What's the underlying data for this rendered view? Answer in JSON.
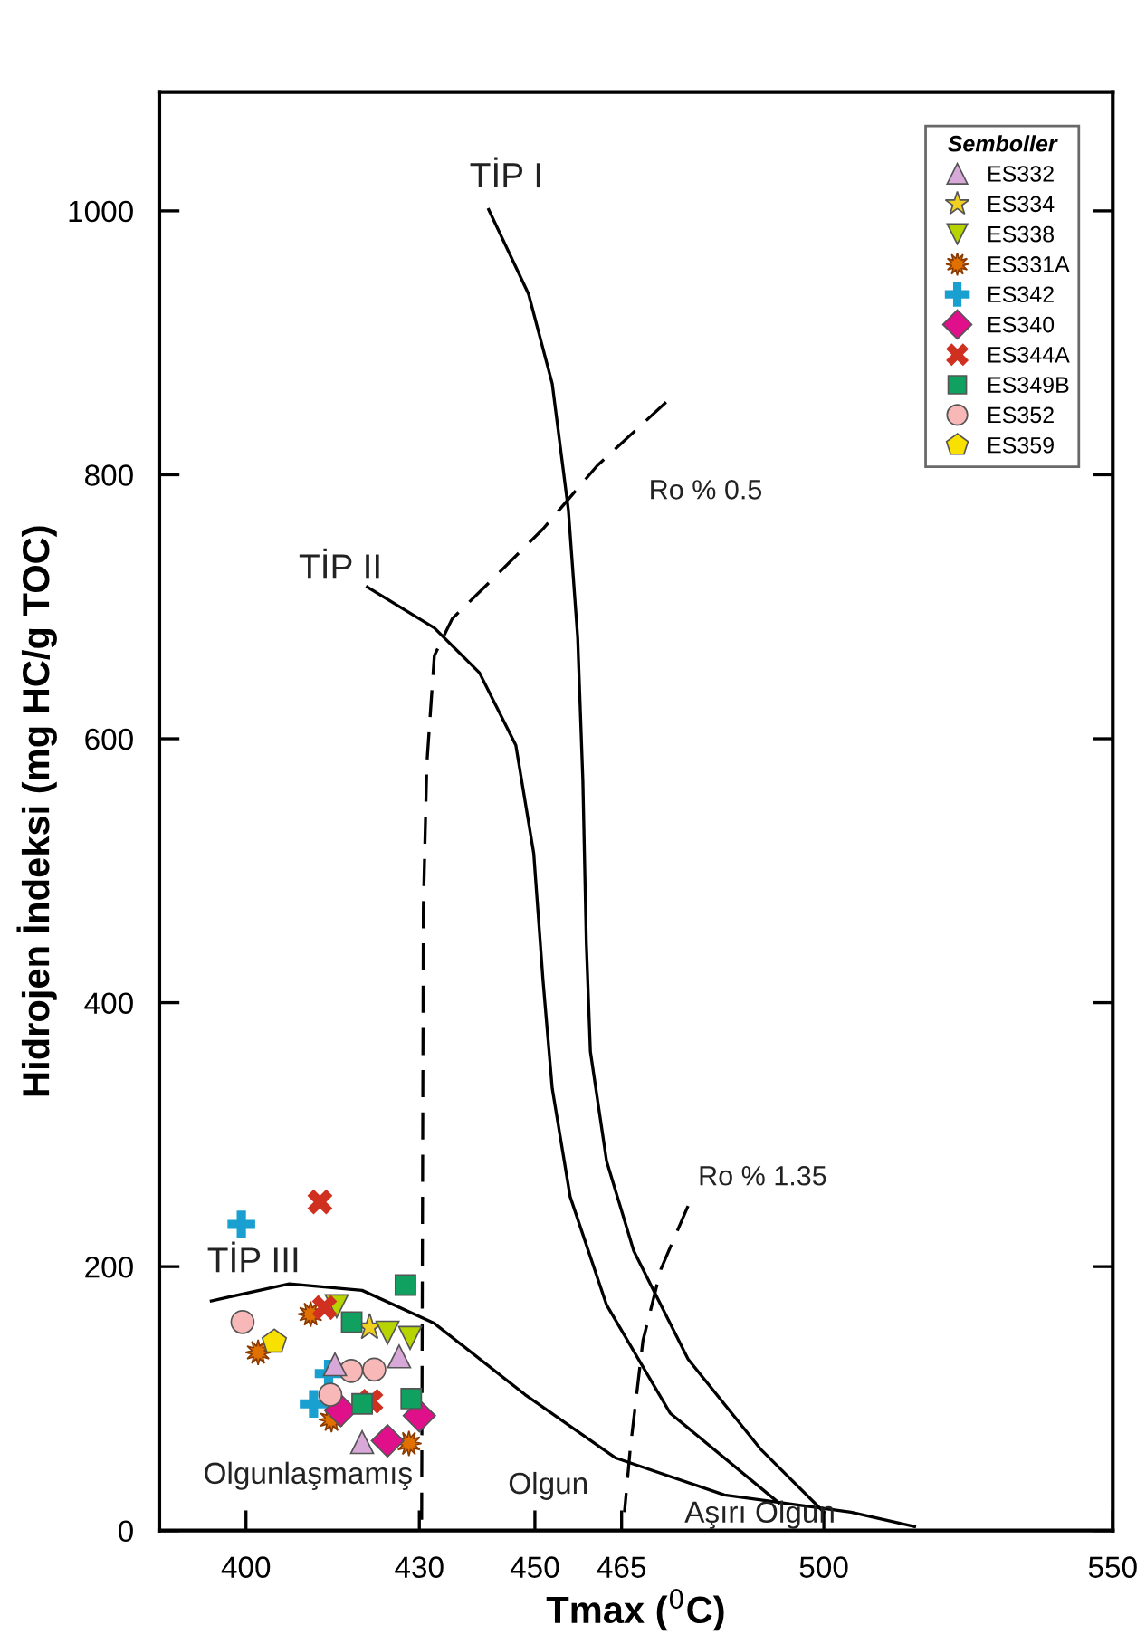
{
  "chart_data": {
    "type": "scatter",
    "xlabel": "Tmax ($^{0}$C)",
    "ylabel": "Hidrojen İndeksi (mg HC/g TOC)",
    "legend_title": "Semboller",
    "legend": "top right",
    "grid": false,
    "xlim": [
      385,
      550
    ],
    "xticks": [
      400,
      430,
      450,
      465,
      500,
      550
    ],
    "ylim": [
      0,
      1090
    ],
    "yticks": [
      0,
      200,
      400,
      600,
      800,
      1000
    ],
    "series": [
      {
        "type": "line",
        "color": "#000000",
        "line_style": "solid",
        "x": [
          442.0,
          448.9,
          453.0,
          455.8,
          457.4,
          458.3,
          458.9,
          459.6,
          462.4,
          467.1,
          476.5,
          489.0,
          500.0
        ],
        "values": [
          1001,
          937,
          869,
          773,
          677,
          568,
          445,
          363,
          280,
          212,
          130,
          62,
          14
        ]
      },
      {
        "type": "line",
        "color": "#000000",
        "line_style": "solid",
        "x": [
          421.0,
          432.6,
          440.4,
          446.7,
          449.8,
          451.4,
          453.0,
          456.1,
          462.4,
          473.4,
          492.2
        ],
        "values": [
          715,
          684,
          650,
          595,
          513,
          417,
          335,
          253,
          171,
          89,
          21
        ]
      },
      {
        "type": "line",
        "color": "#000000",
        "line_style": "solid",
        "x": [
          394.0,
          407.5,
          420.1,
          432.6,
          448.3,
          464.0,
          482.8,
          504.7,
          515.7
        ],
        "values": [
          174,
          187,
          182,
          157,
          103,
          55,
          27,
          14,
          3
        ]
      },
      {
        "type": "line",
        "color": "#000000",
        "line_style": "dashed",
        "x": [
          472.7,
          460.8,
          451.4,
          442.0,
          435.7,
          432.6,
          431.3,
          430.7,
          430.4
        ],
        "values": [
          855,
          807,
          759,
          718,
          691,
          663,
          581,
          472,
          7
        ]
      },
      {
        "type": "line",
        "color": "#000000",
        "line_style": "dashed",
        "x": [
          476.5,
          471.8,
          468.7,
          466.5,
          465.5
        ],
        "values": [
          246,
          198,
          144,
          62,
          14
        ]
      },
      {
        "name": "ES332",
        "marker": "triangle",
        "color": "#d8a8d8",
        "x": [
          426.5,
          420.1,
          415.4
        ],
        "values": [
          132,
          67,
          126
        ]
      },
      {
        "name": "ES334",
        "marker": "star",
        "color": "#f0d020",
        "x": [
          421.4
        ],
        "values": [
          154
        ]
      },
      {
        "name": "ES338",
        "marker": "triangle-down",
        "color": "#b8d400",
        "x": [
          415.7,
          424.5,
          428.4
        ],
        "values": [
          170,
          150,
          146
        ]
      },
      {
        "name": "ES331A",
        "color": "#e07000",
        "x": [
          402.1,
          411.2,
          414.8,
          428.2
        ],
        "values": [
          135,
          164,
          84,
          66
        ]
      },
      {
        "name": "ES342",
        "marker": "plus",
        "color": "#1aa0d0",
        "x": [
          399.2,
          414.3,
          411.7
        ],
        "values": [
          232,
          119,
          96
        ]
      },
      {
        "name": "ES340",
        "marker": "diamond",
        "color": "#e0108a",
        "x": [
          416.4,
          424.5,
          430.0
        ],
        "values": [
          91,
          68,
          87
        ]
      },
      {
        "name": "ES344A",
        "marker": "cross",
        "color": "#d03020",
        "x": [
          412.8,
          413.6,
          421.6
        ],
        "values": [
          249,
          169,
          98
        ]
      },
      {
        "name": "ES349B",
        "marker": "square",
        "color": "#10a060",
        "x": [
          427.6,
          418.3,
          420.1,
          428.6
        ],
        "values": [
          186,
          158,
          96,
          100
        ]
      },
      {
        "name": "ES352",
        "marker": "circle",
        "color": "#f8b8b8",
        "x": [
          399.4,
          418.2,
          422.2,
          414.6
        ],
        "values": [
          158,
          121,
          122,
          103
        ]
      },
      {
        "name": "ES359",
        "color": "#f8e000",
        "x": [
          404.9
        ],
        "values": [
          143
        ]
      }
    ],
    "annotations": [
      "TİP I",
      "TİP II",
      "TİP III",
      "Ro % 0.5",
      "Ro % 1.35",
      "Olgunlaşmamış",
      "Olgun",
      "Aşırı Olgun"
    ]
  }
}
